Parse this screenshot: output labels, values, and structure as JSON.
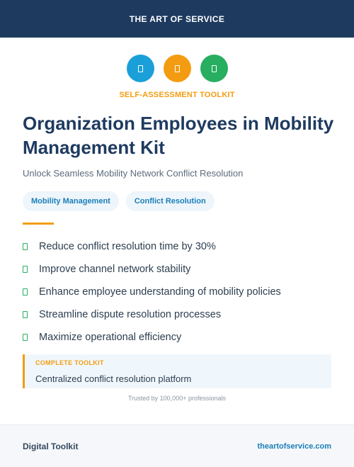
{
  "header": {
    "brand": "THE ART OF SERVICE"
  },
  "icons": [
    {
      "name": "document-icon",
      "color": "#1a9fd9"
    },
    {
      "name": "document-icon",
      "color": "#f39c12"
    },
    {
      "name": "document-icon",
      "color": "#27ae60"
    }
  ],
  "eyebrow": "SELF-ASSESSMENT TOOLKIT",
  "title": "Organization Employees in Mobility Management Kit",
  "subtitle": "Unlock Seamless Mobility Network Conflict Resolution",
  "tags": [
    "Mobility Management",
    "Conflict Resolution"
  ],
  "benefits": [
    "Reduce conflict resolution time by 30%",
    "Improve channel network stability",
    "Enhance employee understanding of mobility policies",
    "Streamline dispute resolution processes",
    "Maximize operational efficiency"
  ],
  "callout": {
    "label": "COMPLETE TOOLKIT",
    "text": "Centralized conflict resolution platform"
  },
  "trusted": "Trusted by 100,000+ professionals",
  "footer": {
    "left": "Digital Toolkit",
    "right": "theartofservice.com"
  },
  "colors": {
    "navy": "#1e3a5f",
    "accent_orange": "#f39c12",
    "accent_blue": "#1a7fb8",
    "check_green": "#27ae60"
  }
}
